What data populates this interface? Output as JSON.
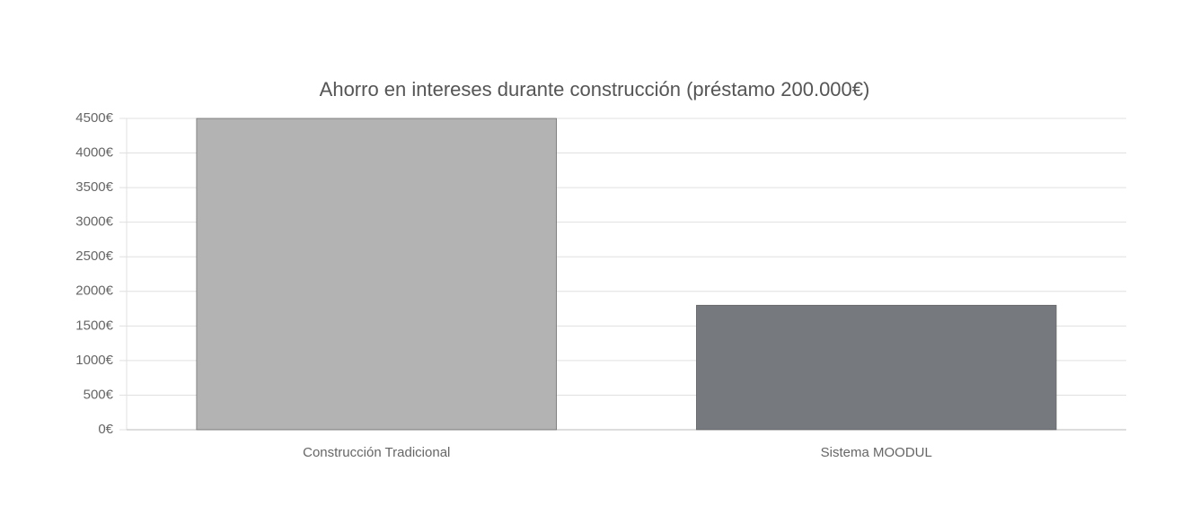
{
  "chart_data": {
    "type": "bar",
    "title": "Ahorro en intereses durante construcción (préstamo 200.000€)",
    "categories": [
      "Construcción Tradicional",
      "Sistema MOODUL"
    ],
    "values": [
      4500,
      1800
    ],
    "colors": [
      "#b3b3b3",
      "#76797d"
    ],
    "ylim": [
      0,
      4500
    ],
    "yticks": [
      {
        "value": 0,
        "label": "0€"
      },
      {
        "value": 500,
        "label": "500€"
      },
      {
        "value": 1000,
        "label": "1000€"
      },
      {
        "value": 1500,
        "label": "1500€"
      },
      {
        "value": 2000,
        "label": "2000€"
      },
      {
        "value": 2500,
        "label": "2500€"
      },
      {
        "value": 3000,
        "label": "3000€"
      },
      {
        "value": 3500,
        "label": "3500€"
      },
      {
        "value": 4000,
        "label": "4000€"
      },
      {
        "value": 4500,
        "label": "4500€"
      }
    ],
    "grid": true
  }
}
